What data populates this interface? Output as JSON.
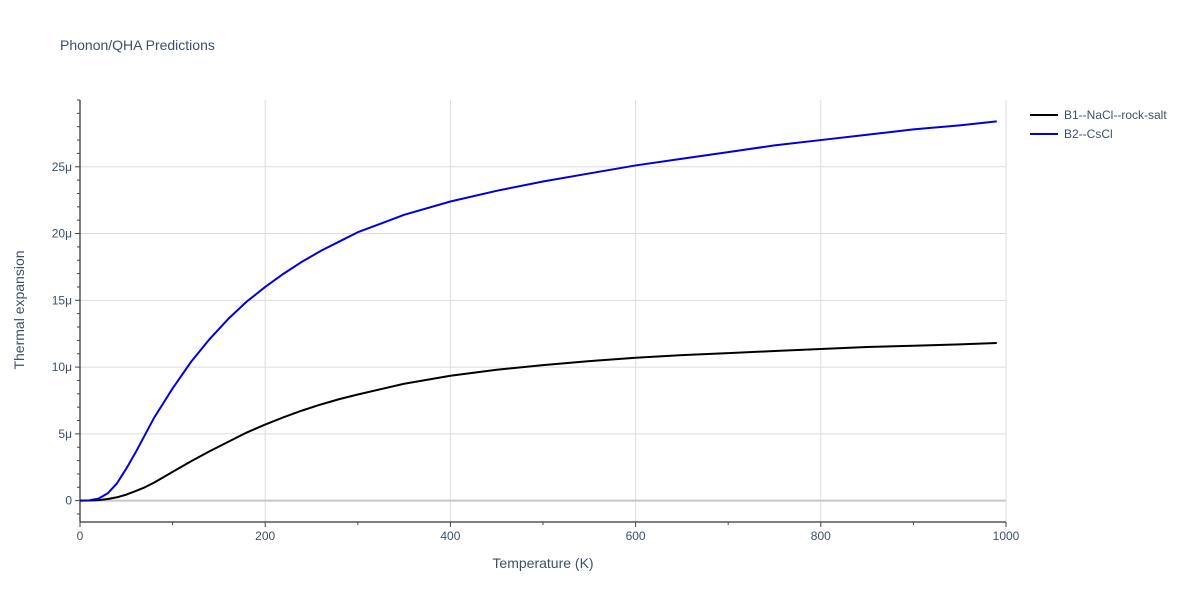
{
  "chart_data": {
    "type": "line",
    "title": "Phonon/QHA Predictions",
    "xlabel": "Temperature (K)",
    "ylabel": "Thermal expansion",
    "xlim": [
      0,
      1000
    ],
    "ylim": [
      -1.6,
      30
    ],
    "x_ticks": [
      0,
      200,
      400,
      600,
      800,
      1000
    ],
    "x_tick_labels": [
      "0",
      "200",
      "400",
      "600",
      "800",
      "1000"
    ],
    "y_ticks": [
      0,
      5,
      10,
      15,
      20,
      25
    ],
    "y_tick_labels": [
      "0",
      "5μ",
      "10μ",
      "15μ",
      "20μ",
      "25μ"
    ],
    "grid": true,
    "legend_position": "top-right",
    "series": [
      {
        "name": "B1--NaCl--rock-salt",
        "color": "#000000",
        "x": [
          0,
          10,
          20,
          30,
          40,
          50,
          60,
          70,
          80,
          90,
          100,
          120,
          140,
          160,
          180,
          200,
          220,
          240,
          260,
          280,
          300,
          350,
          400,
          450,
          500,
          550,
          600,
          650,
          700,
          750,
          800,
          850,
          900,
          950,
          990
        ],
        "y": [
          0,
          0.01,
          0.04,
          0.12,
          0.25,
          0.45,
          0.72,
          1.0,
          1.35,
          1.75,
          2.15,
          2.95,
          3.7,
          4.4,
          5.1,
          5.7,
          6.25,
          6.75,
          7.2,
          7.6,
          7.95,
          8.75,
          9.35,
          9.8,
          10.15,
          10.45,
          10.7,
          10.9,
          11.05,
          11.2,
          11.35,
          11.5,
          11.6,
          11.7,
          11.8
        ]
      },
      {
        "name": "B2--CsCl",
        "color": "#0000dd",
        "x": [
          0,
          10,
          20,
          30,
          40,
          50,
          60,
          70,
          80,
          90,
          100,
          120,
          140,
          160,
          180,
          200,
          220,
          240,
          260,
          280,
          300,
          350,
          400,
          450,
          500,
          550,
          600,
          650,
          700,
          750,
          800,
          850,
          900,
          950,
          990
        ],
        "y": [
          0,
          0.02,
          0.15,
          0.55,
          1.3,
          2.4,
          3.6,
          4.9,
          6.2,
          7.3,
          8.4,
          10.4,
          12.1,
          13.6,
          14.9,
          16.0,
          17.0,
          17.9,
          18.7,
          19.4,
          20.1,
          21.4,
          22.4,
          23.2,
          23.9,
          24.5,
          25.1,
          25.6,
          26.1,
          26.6,
          27.0,
          27.4,
          27.8,
          28.1,
          28.4
        ]
      }
    ]
  }
}
